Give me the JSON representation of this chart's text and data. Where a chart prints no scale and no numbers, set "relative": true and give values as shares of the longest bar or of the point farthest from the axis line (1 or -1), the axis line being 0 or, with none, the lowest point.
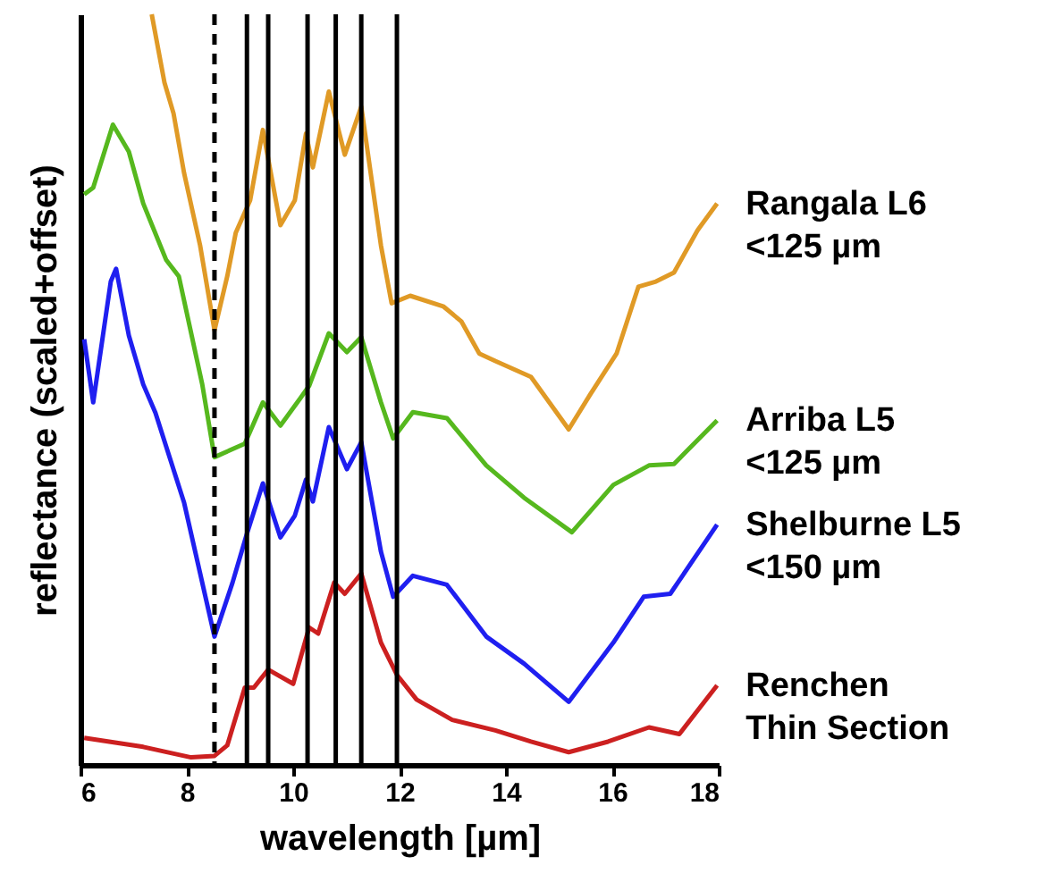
{
  "chart_data": {
    "type": "line",
    "relative": true,
    "xlabel": "wavelength [µm]",
    "ylabel": "reflectance (scaled+offset)",
    "xlim": [
      6,
      18
    ],
    "xticks": [
      6,
      8,
      10,
      12,
      14,
      16,
      18
    ],
    "grid": false,
    "marker": "none",
    "line_style": "solid",
    "series": [
      {
        "name": "Rangala L6\n<125 µm",
        "color": "#e09a26",
        "x": [
          7.34,
          7.58,
          7.75,
          7.95,
          8.25,
          8.52,
          8.76,
          8.92,
          9.19,
          9.43,
          9.76,
          10.03,
          10.24,
          10.37,
          10.67,
          10.97,
          11.28,
          11.65,
          11.85,
          12.2,
          12.82,
          13.16,
          13.5,
          13.8,
          14.47,
          15.18,
          15.58,
          16.08,
          16.49,
          16.82,
          17.16,
          17.6,
          17.97
        ],
        "values": [
          1.0,
          0.909,
          0.868,
          0.788,
          0.692,
          0.579,
          0.651,
          0.709,
          0.752,
          0.846,
          0.719,
          0.752,
          0.841,
          0.796,
          0.897,
          0.813,
          0.877,
          0.692,
          0.615,
          0.625,
          0.611,
          0.591,
          0.548,
          0.538,
          0.517,
          0.447,
          0.493,
          0.548,
          0.637,
          0.644,
          0.656,
          0.712,
          0.748
        ]
      },
      {
        "name": "Arriba L5\n<125 µm",
        "color": "#56b81e",
        "x": [
          6.07,
          6.24,
          6.61,
          6.91,
          7.18,
          7.61,
          7.85,
          8.29,
          8.52,
          9.09,
          9.43,
          9.76,
          10.13,
          10.3,
          10.67,
          11.01,
          11.28,
          11.65,
          11.88,
          12.25,
          12.89,
          13.63,
          14.34,
          15.24,
          16.02,
          16.69,
          17.16,
          17.97
        ],
        "values": [
          0.76,
          0.769,
          0.853,
          0.817,
          0.748,
          0.673,
          0.651,
          0.507,
          0.41,
          0.428,
          0.483,
          0.452,
          0.488,
          0.505,
          0.575,
          0.55,
          0.57,
          0.483,
          0.435,
          0.47,
          0.462,
          0.399,
          0.356,
          0.31,
          0.373,
          0.399,
          0.401,
          0.459
        ]
      },
      {
        "name": "Shelburne L5\n<150 µm",
        "color": "#1f1ff0",
        "x": [
          6.07,
          6.24,
          6.57,
          6.67,
          6.91,
          7.18,
          7.41,
          7.95,
          8.52,
          8.86,
          9.13,
          9.43,
          9.76,
          10.03,
          10.24,
          10.37,
          10.67,
          11.01,
          11.28,
          11.65,
          11.88,
          12.25,
          12.89,
          13.63,
          14.34,
          15.18,
          16.02,
          16.59,
          17.09,
          17.97
        ],
        "values": [
          0.567,
          0.483,
          0.644,
          0.661,
          0.572,
          0.507,
          0.469,
          0.349,
          0.171,
          0.243,
          0.308,
          0.375,
          0.303,
          0.332,
          0.38,
          0.351,
          0.45,
          0.394,
          0.43,
          0.284,
          0.224,
          0.252,
          0.24,
          0.171,
          0.135,
          0.084,
          0.163,
          0.224,
          0.228,
          0.32
        ]
      },
      {
        "name": "Renchen\nThin Section",
        "color": "#cc2020",
        "x": [
          6.07,
          7.18,
          8.08,
          8.52,
          8.76,
          9.09,
          9.26,
          9.53,
          10.0,
          10.3,
          10.47,
          10.77,
          10.97,
          11.28,
          11.65,
          11.95,
          12.32,
          12.99,
          13.8,
          14.47,
          15.18,
          15.92,
          16.69,
          17.26,
          17.97
        ],
        "values": [
          0.036,
          0.024,
          0.01,
          0.012,
          0.026,
          0.103,
          0.103,
          0.127,
          0.108,
          0.183,
          0.175,
          0.243,
          0.228,
          0.255,
          0.163,
          0.12,
          0.087,
          0.06,
          0.046,
          0.031,
          0.017,
          0.031,
          0.05,
          0.041,
          0.106
        ]
      }
    ],
    "ref_lines": [
      {
        "axis": "x",
        "value": 8.52,
        "color": "#000000",
        "line_style": "dashed"
      },
      {
        "axis": "x",
        "value": 9.13,
        "color": "#000000",
        "line_style": "solid"
      },
      {
        "axis": "x",
        "value": 9.53,
        "color": "#000000",
        "line_style": "solid"
      },
      {
        "axis": "x",
        "value": 10.27,
        "color": "#000000",
        "line_style": "solid"
      },
      {
        "axis": "x",
        "value": 10.8,
        "color": "#000000",
        "line_style": "solid"
      },
      {
        "axis": "x",
        "value": 11.28,
        "color": "#000000",
        "line_style": "solid"
      },
      {
        "axis": "x",
        "value": 11.95,
        "color": "#000000",
        "line_style": "solid"
      }
    ]
  }
}
